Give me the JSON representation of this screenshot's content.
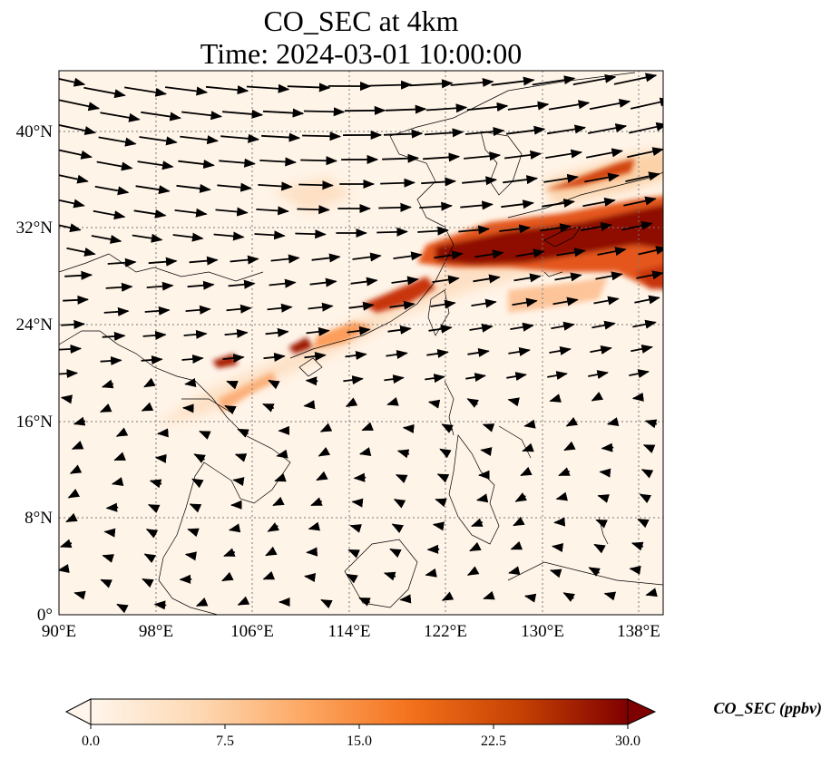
{
  "figure": {
    "title_line1": "CO_SEC at 4km",
    "title_line2": "Time: 2024-03-01 10:00:00"
  },
  "map": {
    "lon_range": [
      90,
      140
    ],
    "lat_range": [
      0,
      45
    ],
    "lon_ticks": [
      "90°E",
      "98°E",
      "106°E",
      "114°E",
      "122°E",
      "130°E",
      "138°E"
    ],
    "lat_ticks": [
      "0°",
      "8°N",
      "16°N",
      "24°N",
      "32°N",
      "40°N"
    ],
    "gridlines": true,
    "vector_field": "wind arrows",
    "colormap": [
      "#fff5eb",
      "#fdd9b4",
      "#fda762",
      "#f3701b",
      "#c54102",
      "#7f0000"
    ]
  },
  "colorbar": {
    "label": "CO_SEC (ppbv)",
    "range": [
      0,
      30
    ],
    "ticks": [
      "0.0",
      "7.5",
      "15.0",
      "22.5",
      "30.0"
    ],
    "extend": "both"
  }
}
